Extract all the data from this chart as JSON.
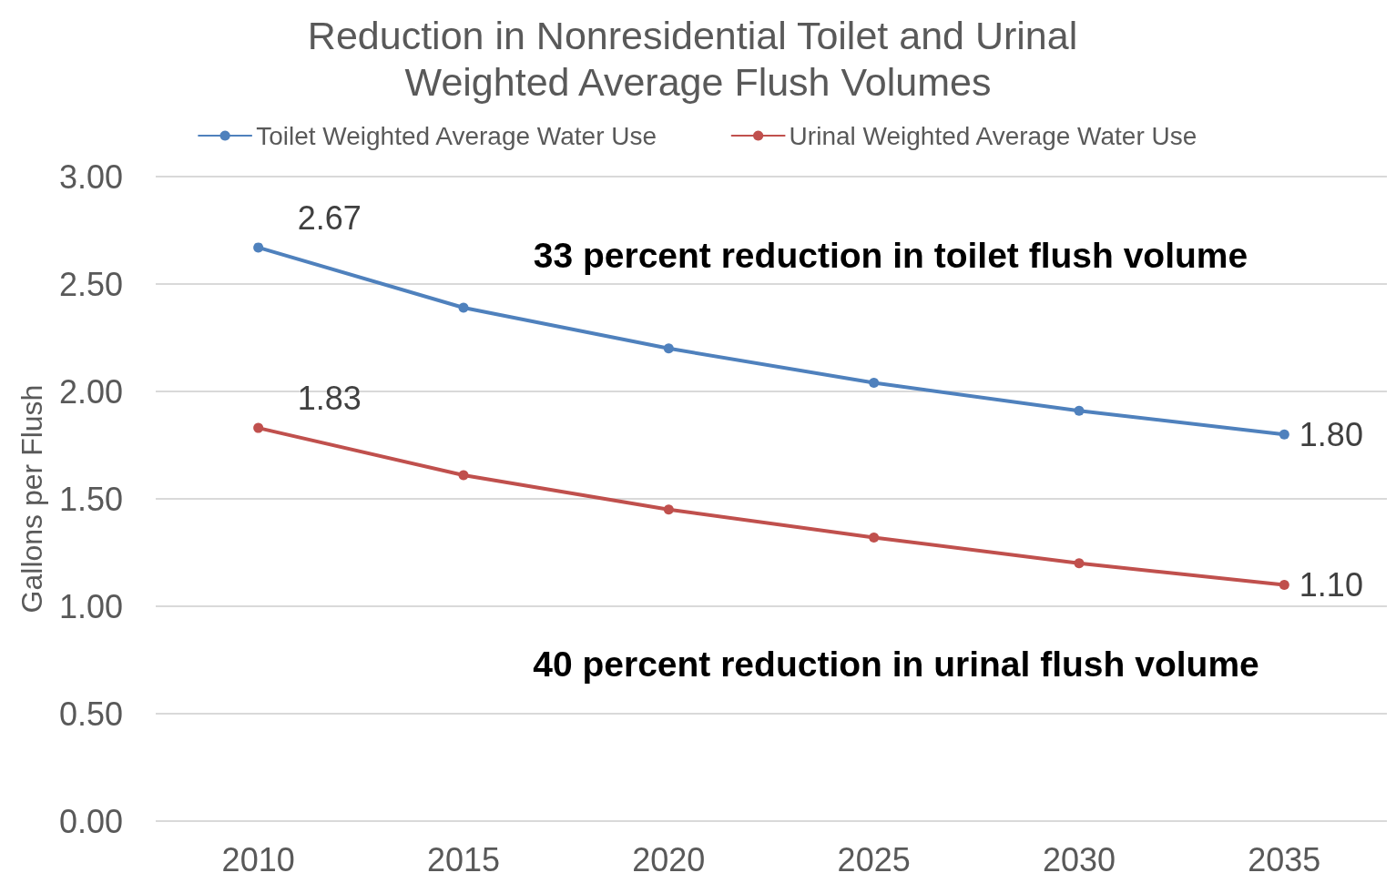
{
  "chart_data": {
    "type": "line",
    "title": "Reduction in Nonresidential Toilet and Urinal Weighted Average Flush Volumes",
    "ylabel": "Gallons per Flush",
    "categories": [
      "2010",
      "2015",
      "2020",
      "2025",
      "2030",
      "2035"
    ],
    "series": [
      {
        "name": "Toilet Weighted Average Water Use",
        "color": "#4f81bd",
        "values": [
          2.67,
          2.39,
          2.2,
          2.04,
          1.91,
          1.8
        ],
        "value_labels": [
          "2.67",
          null,
          null,
          null,
          null,
          "1.80"
        ]
      },
      {
        "name": "Urinal Weighted Average Water Use",
        "color": "#c0504d",
        "values": [
          1.83,
          1.61,
          1.45,
          1.32,
          1.2,
          1.1
        ],
        "value_labels": [
          "1.83",
          null,
          null,
          null,
          null,
          "1.10"
        ]
      }
    ],
    "ylim": [
      0,
      3
    ],
    "yticks": [
      {
        "value": 0,
        "label": "0.00"
      },
      {
        "value": 0.5,
        "label": "0.50"
      },
      {
        "value": 1,
        "label": "1.00"
      },
      {
        "value": 1.5,
        "label": "1.50"
      },
      {
        "value": 2,
        "label": "2.00"
      },
      {
        "value": 2.5,
        "label": "2.50"
      },
      {
        "value": 3,
        "label": "3.00"
      }
    ],
    "grid": "y",
    "legend": "top",
    "marker": "circle",
    "line_style": "solid",
    "annotations": [
      "33 percent reduction in toilet flush volume",
      "40 percent reduction in urinal flush volume"
    ]
  }
}
